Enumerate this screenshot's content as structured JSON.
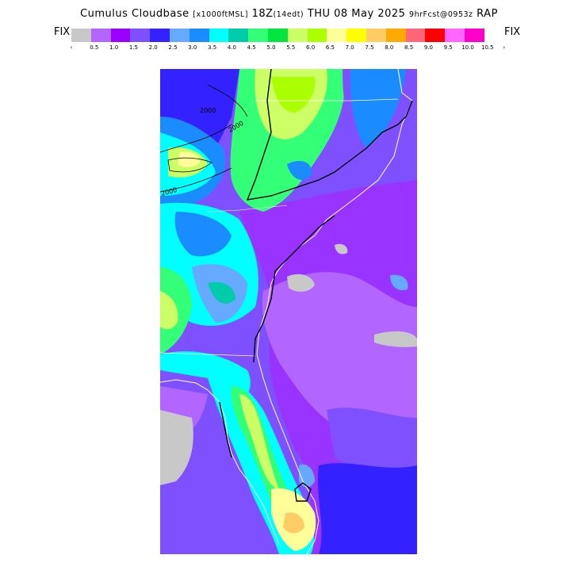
{
  "title": {
    "main": "Cumulus Cloudbase ",
    "units": "[x1000ftMSL]",
    "time": " 18Z",
    "local": "(14edt)",
    "date": " THU 08 May 2025 ",
    "fcst": "9hrFcst@0953z",
    "model": " RAP"
  },
  "legend": {
    "fix_left": "FIX",
    "fix_right": "FIX",
    "less_symbol": "‹",
    "more_symbol": "›",
    "labels": [
      "0.5",
      "1.0",
      "1.5",
      "2.0",
      "2.5",
      "3.0",
      "3.5",
      "4.0",
      "4.5",
      "5.0",
      "5.5",
      "6.0",
      "6.5",
      "7.0",
      "7.5",
      "8.0",
      "8.5",
      "9.0",
      "9.5",
      "10.0",
      "10.5"
    ],
    "colors": [
      "#c8c8c8",
      "#b266ff",
      "#9900ff",
      "#7f50ff",
      "#3322ff",
      "#66aaff",
      "#1a8cff",
      "#00ffff",
      "#00ccaa",
      "#33ff77",
      "#00e640",
      "#ccff66",
      "#aaff00",
      "#ffff99",
      "#ffff00",
      "#ffcc66",
      "#ffaa00",
      "#ff6677",
      "#ff0000",
      "#ff66ff",
      "#ff00cc"
    ]
  },
  "map": {
    "contour_labels": [
      "2000",
      "2000",
      "2000"
    ]
  }
}
